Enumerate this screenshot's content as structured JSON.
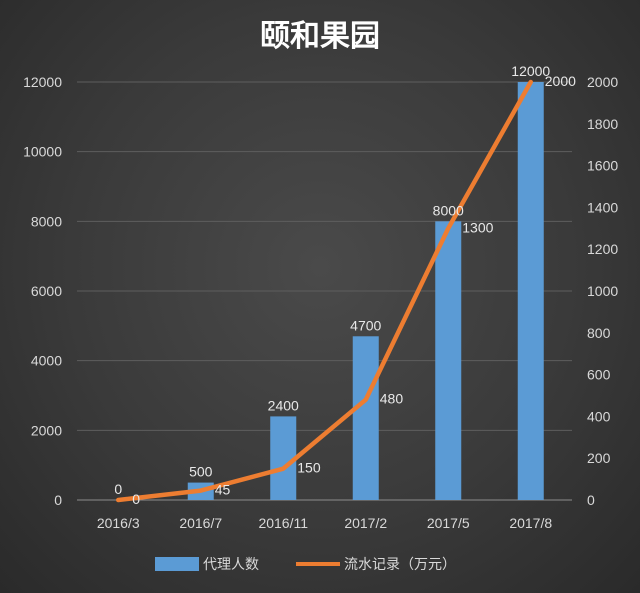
{
  "chart_data": {
    "type": "bar",
    "title": "颐和果园",
    "categories": [
      "2016/3",
      "2016/7",
      "2016/11",
      "2017/2",
      "2017/5",
      "2017/8"
    ],
    "series": [
      {
        "name": "代理人数",
        "type": "bar",
        "axis": "left",
        "values": [
          0,
          500,
          2400,
          4700,
          8000,
          12000
        ],
        "color": "#5b9bd5"
      },
      {
        "name": "流水记录（万元）",
        "type": "line",
        "axis": "right",
        "values": [
          0,
          45,
          150,
          480,
          1300,
          2000
        ],
        "color": "#ed7d31"
      }
    ],
    "y_left": {
      "min": 0,
      "max": 12000,
      "ticks": [
        "0",
        "2000",
        "4000",
        "6000",
        "8000",
        "10000",
        "12000"
      ]
    },
    "y_right": {
      "min": 0,
      "max": 2000,
      "ticks": [
        "0",
        "200",
        "400",
        "600",
        "800",
        "1000",
        "1200",
        "1400",
        "1600",
        "1800",
        "2000"
      ]
    },
    "grid": true,
    "legend": "bottom"
  }
}
